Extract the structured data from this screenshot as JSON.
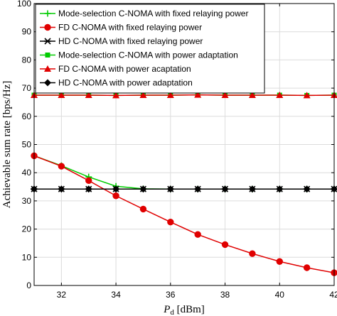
{
  "chart_data": {
    "type": "line",
    "title": "",
    "xlabel": "P_d [dBm]",
    "xlabel_main": "P",
    "xlabel_sub": "d",
    "xlabel_unit": " [dBm]",
    "ylabel": "Achievable sum rate [bps/Hz]",
    "xlim": [
      31,
      42
    ],
    "ylim": [
      0,
      100
    ],
    "xticks": [
      32,
      34,
      36,
      38,
      40,
      42
    ],
    "yticks": [
      0,
      10,
      20,
      30,
      40,
      50,
      60,
      70,
      80,
      90,
      100
    ],
    "grid": true,
    "legend_position": "top-left",
    "x": [
      31,
      32,
      33,
      34,
      35,
      36,
      37,
      38,
      39,
      40,
      41,
      42
    ],
    "series": [
      {
        "name": "Mode-selection C-NOMA with fixed relaying power",
        "color": "#00cc00",
        "marker": "plus",
        "values": [
          46,
          42.5,
          38.5,
          35.2,
          34.3,
          34.2,
          34.2,
          34.2,
          34.2,
          34.2,
          34.2,
          34.2
        ]
      },
      {
        "name": "FD C-NOMA with fixed relaying power",
        "color": "#e00000",
        "marker": "circle",
        "values": [
          46,
          42.3,
          37.2,
          31.8,
          27.1,
          22.5,
          18.1,
          14.5,
          11.3,
          8.5,
          6.3,
          4.5
        ]
      },
      {
        "name": "HD C-NOMA with fixed relaying power",
        "color": "#000000",
        "marker": "asterisk",
        "values": [
          34.2,
          34.2,
          34.2,
          34.2,
          34.2,
          34.2,
          34.2,
          34.2,
          34.2,
          34.2,
          34.2,
          34.2
        ]
      },
      {
        "name": "Mode-selection C-NOMA with power adaptation",
        "color": "#00cc00",
        "marker": "square",
        "values": [
          67.5,
          67.5,
          67.5,
          67.4,
          67.5,
          67.5,
          67.6,
          67.5,
          67.5,
          67.5,
          67.4,
          67.5
        ]
      },
      {
        "name": "FD C-NOMA with power acaptation",
        "color": "#e00000",
        "marker": "triangle",
        "values": [
          67.5,
          67.5,
          67.5,
          67.4,
          67.5,
          67.5,
          67.6,
          67.5,
          67.5,
          67.5,
          67.4,
          67.5
        ]
      },
      {
        "name": "HD C-NOMA with power adaptation",
        "color": "#000000",
        "marker": "diamond",
        "values": [
          34.2,
          34.2,
          34.2,
          34.2,
          34.2,
          34.2,
          34.2,
          34.2,
          34.2,
          34.2,
          34.2,
          34.2
        ]
      }
    ]
  }
}
